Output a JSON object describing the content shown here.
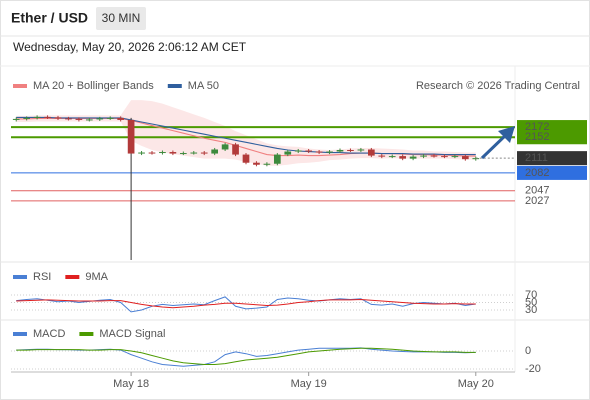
{
  "header": {
    "symbol": "Ether / USD",
    "interval": "30 MIN",
    "timestamp": "Wednesday, May 20, 2026 2:06:12 AM CET"
  },
  "chart_data": [
    {
      "type": "candlestick",
      "source": "Research © 2026 Trading Central",
      "categories": [
        null,
        null,
        null,
        null,
        null,
        null,
        null,
        null,
        null,
        null,
        null,
        "May 18",
        null,
        null,
        null,
        null,
        null,
        null,
        null,
        null,
        null,
        null,
        null,
        null,
        null,
        null,
        null,
        null,
        "May 19",
        null,
        null,
        null,
        null,
        null,
        null,
        null,
        null,
        null,
        null,
        null,
        null,
        null,
        null,
        null,
        "May 20"
      ],
      "open": [
        2186,
        2188,
        2190,
        2192,
        2191,
        2189,
        2188,
        2186,
        2187,
        2189,
        2190,
        2186,
        2120,
        2122,
        2121,
        2123,
        2120,
        2121,
        2122,
        2120,
        2128,
        2138,
        2118,
        2102,
        2098,
        2100,
        2118,
        2124,
        2126,
        2124,
        2122,
        2124,
        2127,
        2126,
        2128,
        2116,
        2114,
        2115,
        2110,
        2114,
        2116,
        2115,
        2114,
        2115,
        2109
      ],
      "high": [
        2191,
        2193,
        2195,
        2195,
        2194,
        2192,
        2191,
        2190,
        2192,
        2193,
        2193,
        2190,
        2125,
        2125,
        2126,
        2126,
        2124,
        2125,
        2125,
        2131,
        2141,
        2141,
        2121,
        2105,
        2103,
        2121,
        2127,
        2129,
        2129,
        2127,
        2127,
        2130,
        2130,
        2131,
        2131,
        2119,
        2118,
        2118,
        2117,
        2119,
        2119,
        2118,
        2118,
        2118,
        2114
      ],
      "low": [
        2183,
        2185,
        2187,
        2188,
        2186,
        2185,
        2183,
        2183,
        2184,
        2186,
        2183,
        1911,
        2117,
        2118,
        2118,
        2117,
        2117,
        2118,
        2117,
        2117,
        2125,
        2115,
        2099,
        2095,
        2095,
        2097,
        2115,
        2121,
        2121,
        2119,
        2119,
        2121,
        2123,
        2123,
        2113,
        2111,
        2111,
        2107,
        2107,
        2111,
        2112,
        2111,
        2111,
        2106,
        2106
      ],
      "close": [
        2188,
        2190,
        2192,
        2191,
        2189,
        2188,
        2186,
        2187,
        2189,
        2190,
        2186,
        2120,
        2122,
        2121,
        2123,
        2120,
        2121,
        2122,
        2120,
        2128,
        2138,
        2118,
        2102,
        2098,
        2100,
        2118,
        2124,
        2126,
        2124,
        2122,
        2124,
        2127,
        2126,
        2128,
        2116,
        2114,
        2115,
        2110,
        2114,
        2116,
        2115,
        2114,
        2115,
        2109,
        2111
      ],
      "up_color": "#3d8a3d",
      "down_color": "#b23a3a",
      "last_color": "#333333",
      "series": [
        {
          "name": "MA 20 + Bollinger Bands",
          "color": "#f08080",
          "band_color": "#fbe1e1",
          "values": [
            2188,
            2188,
            2189,
            2189,
            2189,
            2189,
            2189,
            2189,
            2189,
            2189,
            2189,
            2185,
            2180,
            2175,
            2170,
            2165,
            2160,
            2155,
            2150,
            2146,
            2142,
            2136,
            2130,
            2124,
            2118,
            2116,
            2116,
            2117,
            2116,
            2116,
            2117,
            2118,
            2120,
            2121,
            2121,
            2120,
            2120,
            2119,
            2118,
            2118,
            2117,
            2117,
            2116,
            2115,
            2115
          ],
          "upper": [
            2194,
            2194,
            2195,
            2195,
            2195,
            2195,
            2195,
            2195,
            2195,
            2195,
            2195,
            2225,
            2225,
            2223,
            2218,
            2211,
            2204,
            2197,
            2190,
            2182,
            2174,
            2164,
            2156,
            2148,
            2140,
            2136,
            2134,
            2133,
            2130,
            2128,
            2127,
            2128,
            2130,
            2131,
            2131,
            2130,
            2129,
            2128,
            2126,
            2126,
            2124,
            2124,
            2123,
            2122,
            2122
          ],
          "lower": [
            2182,
            2182,
            2183,
            2183,
            2183,
            2183,
            2183,
            2183,
            2183,
            2183,
            2183,
            2145,
            2135,
            2127,
            2122,
            2119,
            2116,
            2113,
            2110,
            2110,
            2110,
            2108,
            2104,
            2100,
            2096,
            2096,
            2098,
            2101,
            2102,
            2104,
            2107,
            2108,
            2110,
            2111,
            2111,
            2110,
            2111,
            2110,
            2110,
            2110,
            2110,
            2110,
            2109,
            2108,
            2108
          ]
        },
        {
          "name": "MA 50",
          "color": "#2f5f9e",
          "values": [
            2191,
            2191,
            2191,
            2191,
            2190,
            2190,
            2190,
            2190,
            2190,
            2190,
            2190,
            2186,
            2182,
            2178,
            2174,
            2170,
            2166,
            2162,
            2158,
            2154,
            2150,
            2146,
            2142,
            2138,
            2134,
            2130,
            2127,
            2125,
            2124,
            2123,
            2122,
            2122,
            2121,
            2121,
            2121,
            2120,
            2120,
            2120,
            2119,
            2119,
            2119,
            2118,
            2118,
            2118,
            2118
          ]
        }
      ],
      "levels": [
        {
          "value": 2172,
          "color": "#4c9a00",
          "boxed": true
        },
        {
          "value": 2152,
          "color": "#4c9a00",
          "boxed": true
        },
        {
          "value": 2082,
          "color": "#2f6fe0",
          "boxed": true
        },
        {
          "value": 2047,
          "color": "#e06060",
          "boxed": false
        },
        {
          "value": 2027,
          "color": "#e06060",
          "boxed": false
        }
      ],
      "ylim": [
        1911,
        2233
      ]
    },
    {
      "type": "line",
      "series": [
        {
          "name": "RSI",
          "color": "#4a7fd4",
          "values": [
            55,
            58,
            60,
            56,
            52,
            54,
            50,
            53,
            56,
            58,
            50,
            25,
            30,
            40,
            45,
            42,
            44,
            46,
            44,
            55,
            65,
            40,
            33,
            35,
            38,
            58,
            62,
            60,
            56,
            54,
            57,
            60,
            58,
            60,
            45,
            43,
            46,
            40,
            47,
            50,
            48,
            46,
            48,
            42,
            46
          ]
        },
        {
          "name": "9MA",
          "color": "#e02020",
          "values": [
            54,
            55,
            56,
            57,
            56,
            55,
            54,
            54,
            54,
            55,
            55,
            50,
            45,
            41,
            38,
            36,
            38,
            40,
            43,
            45,
            48,
            48,
            46,
            44,
            42,
            43,
            46,
            50,
            52,
            55,
            57,
            57,
            57,
            58,
            56,
            54,
            52,
            50,
            48,
            47,
            46,
            46,
            47,
            46,
            46
          ]
        }
      ],
      "ylim": [
        10,
        90
      ],
      "yticks": [
        70,
        50,
        30
      ],
      "grid": true
    },
    {
      "type": "line",
      "series": [
        {
          "name": "MACD",
          "color": "#4a7fd4",
          "values": [
            1,
            1.5,
            2,
            2,
            1.5,
            1.5,
            1,
            1,
            1.5,
            2,
            1,
            -4,
            -8,
            -12,
            -15,
            -16,
            -17,
            -16,
            -15,
            -12,
            -4,
            -1,
            -3,
            -6,
            -5,
            -3,
            -1,
            1,
            2,
            3,
            3,
            3,
            3,
            3.5,
            2,
            1,
            0,
            -0.5,
            -1,
            -1,
            -1,
            -1.5,
            -1.5,
            -2,
            -1.5
          ]
        },
        {
          "name": "MACD Signal",
          "color": "#4c9a00",
          "values": [
            1,
            1,
            1.5,
            1.5,
            1.5,
            1.5,
            1.5,
            1,
            1,
            1.5,
            1.5,
            0,
            -2,
            -5,
            -8,
            -11,
            -13,
            -14,
            -15,
            -15,
            -14,
            -12,
            -10,
            -9,
            -8,
            -7,
            -5,
            -3,
            -1,
            0,
            1,
            2,
            2.5,
            3,
            3,
            2.5,
            2,
            1,
            0,
            -0.5,
            -1,
            -1,
            -1,
            -1.5,
            -1.5
          ]
        }
      ],
      "ylim": [
        -30,
        14
      ],
      "yticks": [
        0,
        -20
      ],
      "grid": true
    }
  ]
}
